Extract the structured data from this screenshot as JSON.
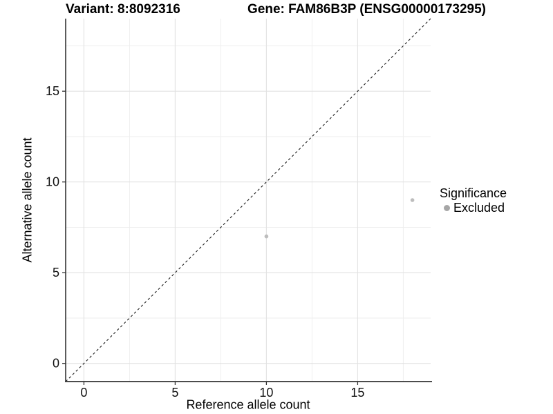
{
  "colors": {
    "background": "#ffffff",
    "grid_major": "#e2e2e2",
    "grid_minor": "#eeeeee",
    "axis": "#333333",
    "tick_label": "#111111",
    "identity_line": "#1a1a1a",
    "point": "#bdbdbd",
    "legend_key": "#a6a6a6"
  },
  "chart_data": {
    "type": "scatter",
    "title_left": "Variant: 8:8092316",
    "title_right": "Gene: FAM86B3P (ENSG00000173295)",
    "xlabel": "Reference allele count",
    "ylabel": "Alternative allele count",
    "xlim": [
      -1,
      19
    ],
    "ylim": [
      -1,
      19
    ],
    "x_ticks": [
      0,
      5,
      10,
      15
    ],
    "y_ticks": [
      0,
      5,
      10,
      15
    ],
    "x_minor_ticks": [
      2.5,
      7.5,
      12.5,
      17.5
    ],
    "y_minor_ticks": [
      2.5,
      7.5,
      12.5,
      17.5
    ],
    "grid": true,
    "identity_line": {
      "x1": -1,
      "y1": -1,
      "x2": 19,
      "y2": 19,
      "style": "dashed"
    },
    "series": [
      {
        "name": "Excluded",
        "marker_radius": 2.8,
        "points": [
          {
            "x": 10,
            "y": 7
          },
          {
            "x": 18,
            "y": 9
          }
        ]
      }
    ],
    "legend": {
      "title": "Significance",
      "position": "right",
      "items": [
        {
          "label": "Excluded"
        }
      ]
    }
  }
}
